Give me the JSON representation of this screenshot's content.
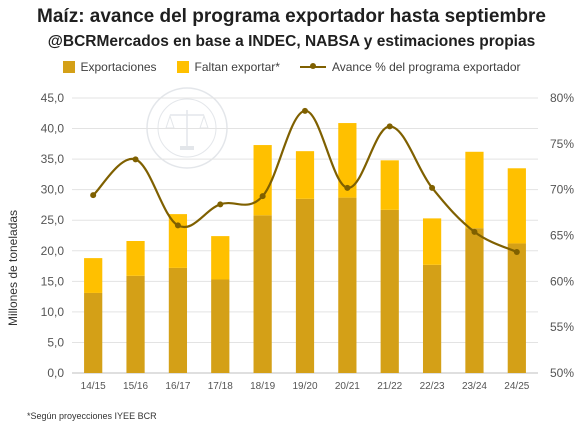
{
  "chart_data": {
    "type": "bar",
    "title": "Maíz: avance del programa exportador hasta septiembre",
    "subtitle": "@BCRMercados en base a INDEC, NABSA y estimaciones propias",
    "ylabel": "Millones de toneladas",
    "ylim": [
      0,
      45
    ],
    "y_ticks": [
      "0,0",
      "5,0",
      "10,0",
      "15,0",
      "20,0",
      "25,0",
      "30,0",
      "35,0",
      "40,0",
      "45,0"
    ],
    "y2lim": [
      50,
      80
    ],
    "y2_ticks": [
      "50%",
      "55%",
      "60%",
      "65%",
      "70%",
      "75%",
      "80%"
    ],
    "categories": [
      "14/15",
      "15/16",
      "16/17",
      "17/18",
      "18/19",
      "19/20",
      "20/21",
      "21/22",
      "22/23",
      "23/24",
      "24/25"
    ],
    "stacked": true,
    "series": [
      {
        "name": "Exportaciones",
        "color": "#D4A017",
        "axis": "left",
        "values": [
          13.1,
          15.9,
          17.2,
          15.3,
          25.8,
          28.5,
          28.7,
          26.7,
          17.7,
          23.7,
          21.2
        ]
      },
      {
        "name": "Faltan exportar*",
        "color": "#FFC000",
        "axis": "left",
        "values": [
          5.7,
          5.7,
          8.8,
          7.1,
          11.5,
          7.8,
          12.2,
          8.1,
          7.6,
          12.5,
          12.3
        ]
      },
      {
        "name": "Avance % del programa exportador",
        "type": "line",
        "color": "#7F6000",
        "axis": "right",
        "values": [
          69.4,
          73.3,
          66.1,
          68.4,
          69.3,
          78.6,
          70.2,
          76.9,
          70.2,
          65.4,
          63.2
        ]
      }
    ],
    "legend_position": "top",
    "grid": true
  },
  "footnote": "*Según proyecciones IYEE BCR",
  "watermark": {
    "text": "BOLSA DE COMERCIO DE ROSARIO"
  }
}
